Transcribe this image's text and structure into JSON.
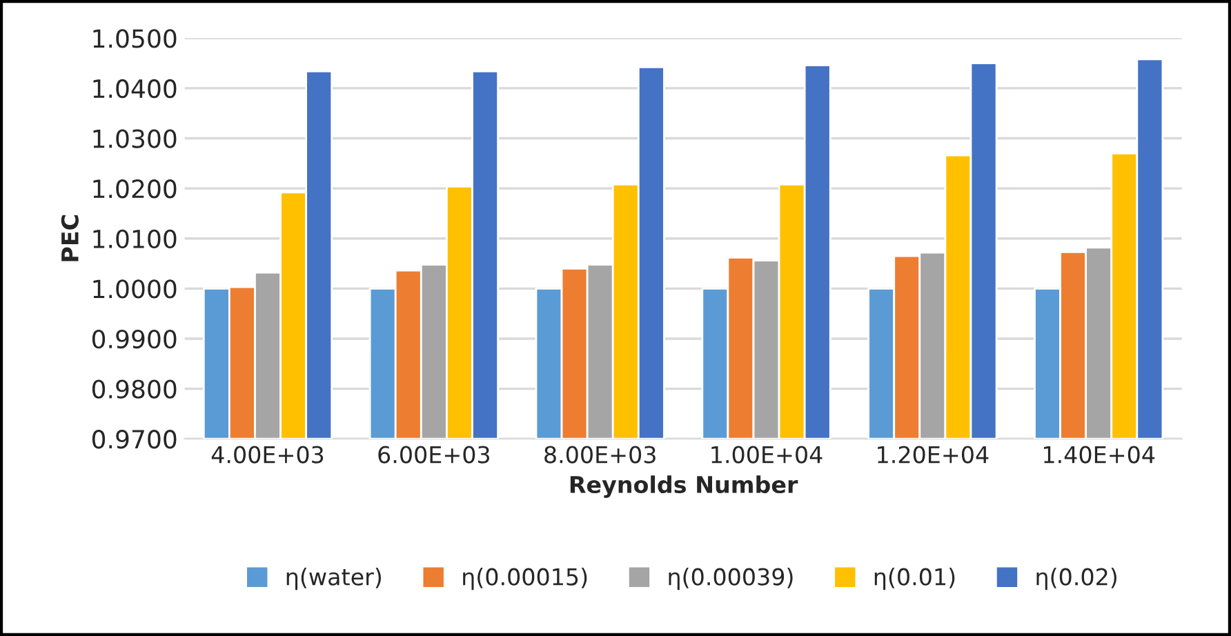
{
  "chart_data": {
    "type": "bar",
    "xlabel": "Reynolds Number",
    "ylabel": "PEC",
    "categories": [
      "4.00E+03",
      "6.00E+03",
      "8.00E+03",
      "1.00E+04",
      "1.20E+04",
      "1.40E+04"
    ],
    "series": [
      {
        "name": "η(water)",
        "color": "#5b9bd5",
        "values": [
          1.0,
          1.0,
          1.0,
          1.0,
          1.0,
          1.0
        ]
      },
      {
        "name": "η(0.00015)",
        "color": "#ed7d31",
        "values": [
          1.0003,
          1.0036,
          1.004,
          1.0062,
          1.0065,
          1.0073
        ]
      },
      {
        "name": "η(0.00039)",
        "color": "#a5a5a5",
        "values": [
          1.0032,
          1.0048,
          1.0048,
          1.0056,
          1.0072,
          1.0082
        ]
      },
      {
        "name": "η(0.01)",
        "color": "#ffc000",
        "values": [
          1.0192,
          1.0204,
          1.0208,
          1.0208,
          1.0266,
          1.027
        ]
      },
      {
        "name": "η(0.02)",
        "color": "#4472c4",
        "values": [
          1.0434,
          1.0434,
          1.0442,
          1.0446,
          1.045,
          1.0458
        ]
      }
    ],
    "ylim": [
      0.97,
      1.05
    ],
    "yticks": [
      {
        "value": 0.97,
        "label": "0.9700"
      },
      {
        "value": 0.98,
        "label": "0.9800"
      },
      {
        "value": 0.99,
        "label": "0.9900"
      },
      {
        "value": 1.0,
        "label": "1.0000"
      },
      {
        "value": 1.01,
        "label": "1.0100"
      },
      {
        "value": 1.02,
        "label": "1.0200"
      },
      {
        "value": 1.03,
        "label": "1.0300"
      },
      {
        "value": 1.04,
        "label": "1.0400"
      },
      {
        "value": 1.05,
        "label": "1.0500"
      }
    ],
    "grid": "y",
    "legend": "bottom"
  }
}
